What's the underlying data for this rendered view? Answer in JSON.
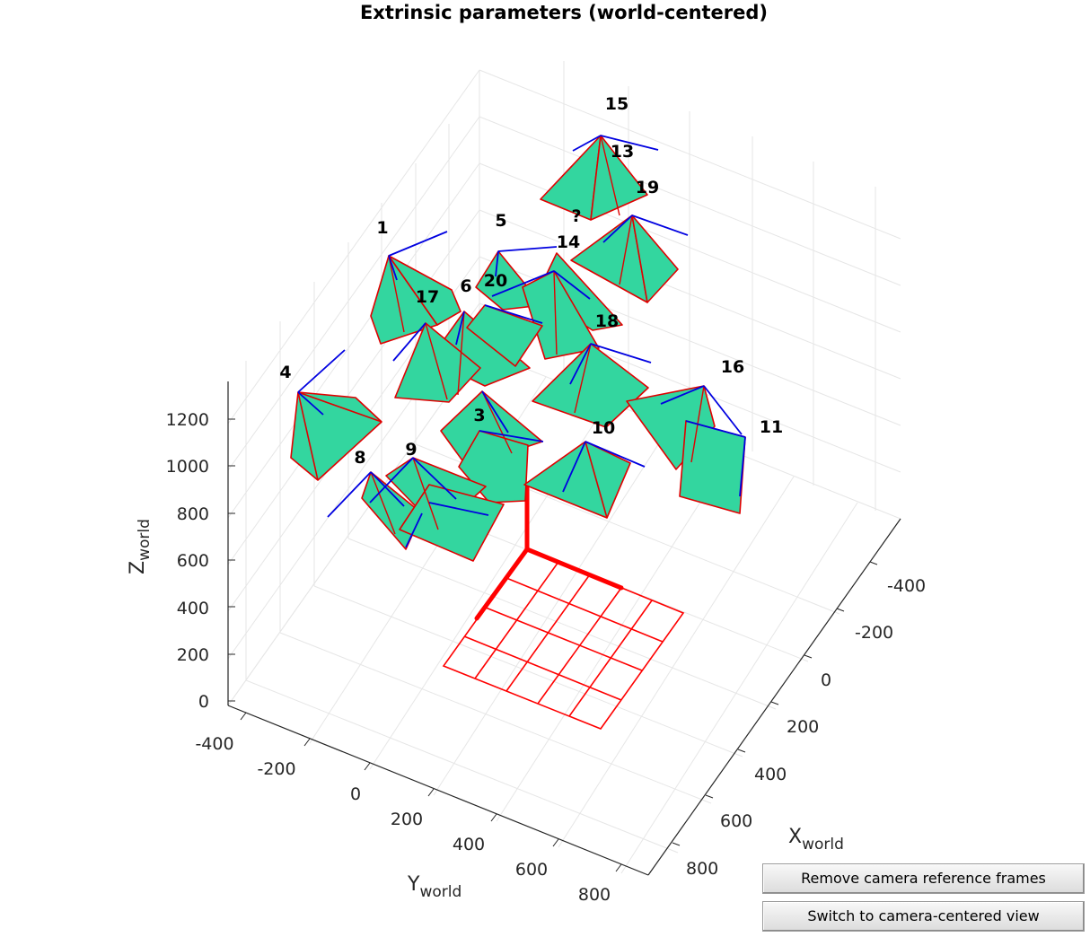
{
  "figure": {
    "title": "Extrinsic parameters (world-centered)",
    "x_label": "X",
    "x_label_sub": "world",
    "y_label": "Y",
    "y_label_sub": "world",
    "z_label": "Z",
    "z_label_sub": "world",
    "x_ticks": [
      "-400",
      "-200",
      "0",
      "200",
      "400",
      "600",
      "800"
    ],
    "y_ticks": [
      "-400",
      "-200",
      "0",
      "200",
      "400",
      "600",
      "800"
    ],
    "z_ticks": [
      "0",
      "200",
      "400",
      "600",
      "800",
      "1000",
      "1200"
    ],
    "camera_labels": [
      "15",
      "13",
      "19",
      "?",
      "1",
      "5",
      "14",
      "17",
      "6",
      "20",
      "18",
      "4",
      "16",
      "3",
      "10",
      "11",
      "8",
      "9"
    ]
  },
  "colors": {
    "camera_face": "#33d69f",
    "camera_edge": "#e00000",
    "camera_axes": "#0000e0",
    "grid": "#e6e6e6",
    "board": "#ff0000"
  },
  "buttons": {
    "remove_label": "Remove camera reference frames",
    "switch_label": "Switch to camera-centered view"
  }
}
